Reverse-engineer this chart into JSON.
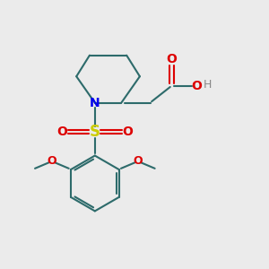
{
  "background_color": "#ebebeb",
  "bond_color": "#2d6b6b",
  "nitrogen_color": "#0000ee",
  "sulfur_color": "#cccc00",
  "oxygen_color": "#dd0000",
  "hydrogen_color": "#888888",
  "bond_width": 1.5,
  "fig_width": 3.0,
  "fig_height": 3.0,
  "xlim": [
    0,
    10
  ],
  "ylim": [
    0,
    10
  ]
}
